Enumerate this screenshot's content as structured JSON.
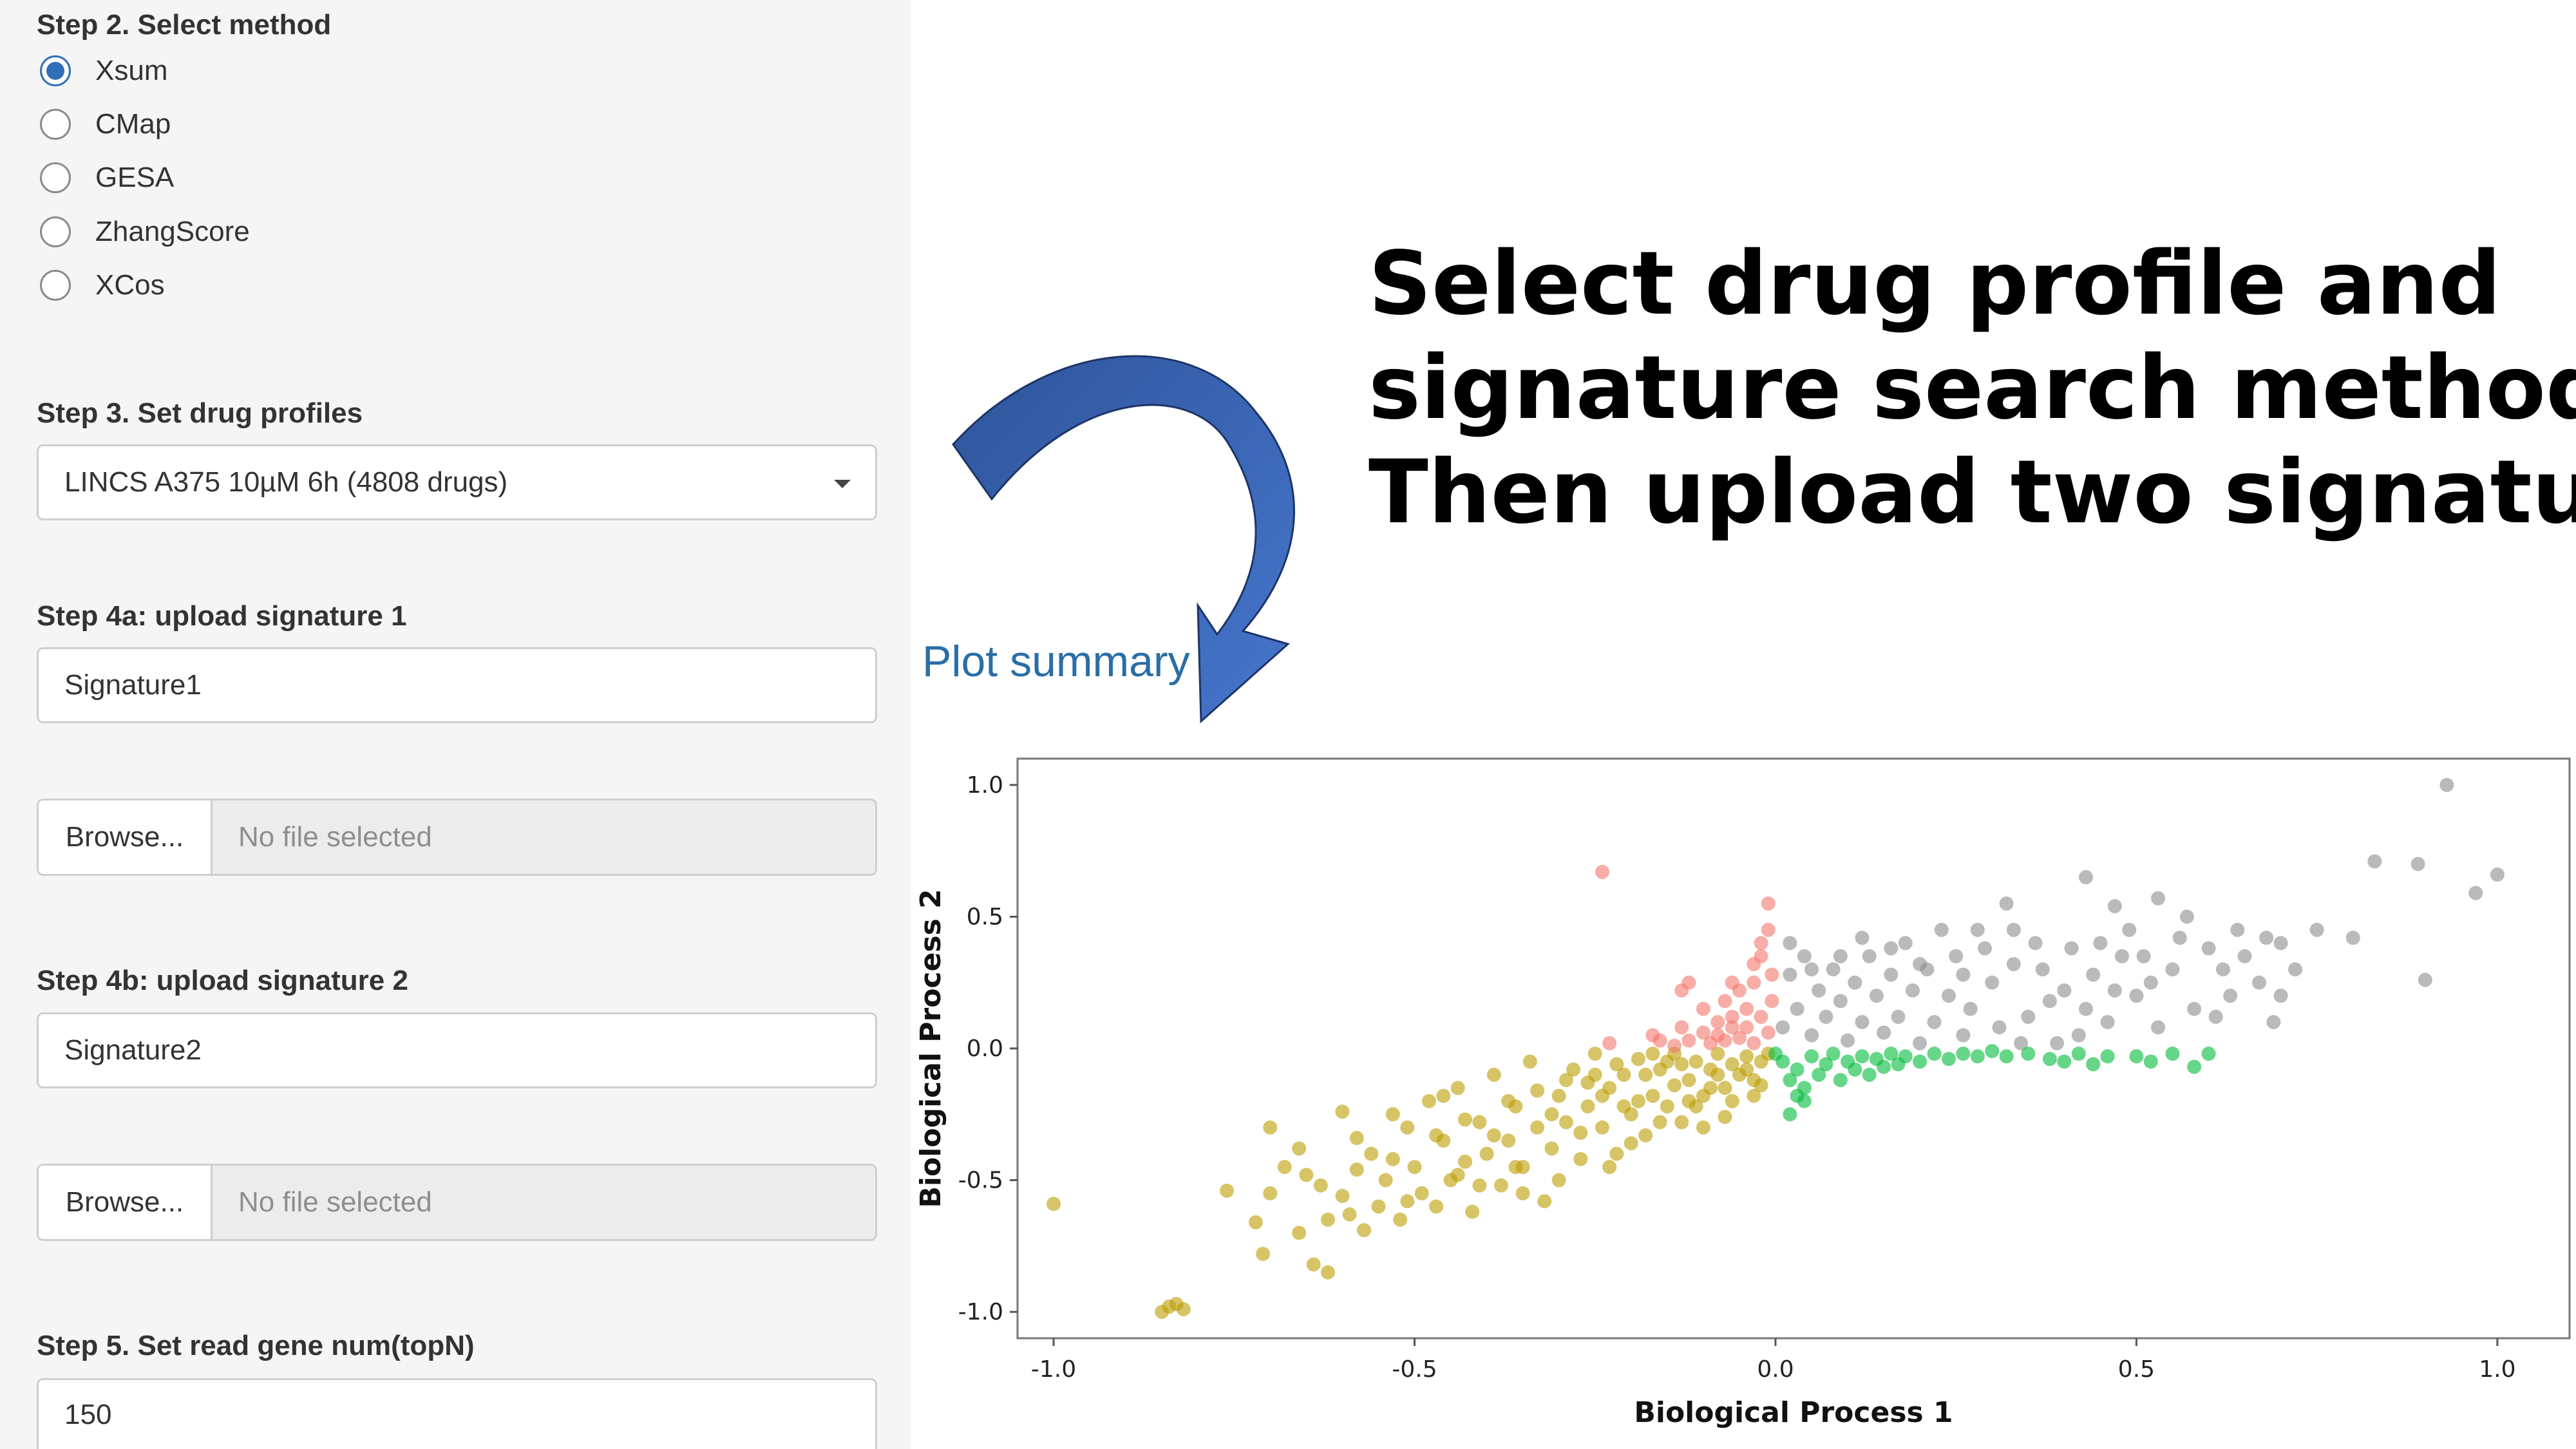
{
  "sidebar": {
    "step2": {
      "label": "Step 2. Select method",
      "options": [
        "Xsum",
        "CMap",
        "GESA",
        "ZhangScore",
        "XCos"
      ],
      "selected": "Xsum"
    },
    "step3": {
      "label": "Step 3. Set drug profiles",
      "selected": "LINCS A375 10µM 6h (4808 drugs)"
    },
    "step4a": {
      "label": "Step 4a: upload signature 1",
      "name_value": "Signature1",
      "browse_label": "Browse...",
      "file_status": "No file selected"
    },
    "step4b": {
      "label": "Step 4b: upload signature 2",
      "name_value": "Signature2",
      "browse_label": "Browse...",
      "file_status": "No file selected"
    },
    "step5": {
      "label": "Step 5. Set read gene num(topN)",
      "value": "150"
    }
  },
  "headline": {
    "line1": "Select drug profile and",
    "line2": "signature search method",
    "line3": "Then upload two signature"
  },
  "arrow": {
    "icon": "curved-arrow-icon",
    "color": "#4472c4"
  },
  "plot_title": "Plot summary",
  "chart_data": {
    "type": "scatter",
    "xlabel": "Biological Process 1",
    "ylabel": "Biological Process 2",
    "xlim": [
      -1.05,
      1.1
    ],
    "ylim": [
      -1.1,
      1.1
    ],
    "xticks": [
      "-1.0",
      "-0.5",
      "0.0",
      "0.5",
      "1.0"
    ],
    "yticks": [
      "-1.0",
      "-0.5",
      "0.0",
      "0.5",
      "1.0"
    ],
    "grid": false,
    "legend": "none",
    "series": [
      {
        "color": "#bd9c00",
        "points": [
          [
            -1.0,
            -0.59
          ],
          [
            -0.85,
            -1.0
          ],
          [
            -0.83,
            -0.97
          ],
          [
            -0.82,
            -0.99
          ],
          [
            -0.84,
            -0.98
          ],
          [
            -0.76,
            -0.54
          ],
          [
            -0.72,
            -0.66
          ],
          [
            -0.71,
            -0.78
          ],
          [
            -0.7,
            -0.55
          ],
          [
            -0.7,
            -0.3
          ],
          [
            -0.68,
            -0.45
          ],
          [
            -0.66,
            -0.38
          ],
          [
            -0.66,
            -0.7
          ],
          [
            -0.64,
            -0.82
          ],
          [
            -0.63,
            -0.52
          ],
          [
            -0.62,
            -0.65
          ],
          [
            -0.62,
            -0.85
          ],
          [
            -0.6,
            -0.56
          ],
          [
            -0.6,
            -0.24
          ],
          [
            -0.59,
            -0.63
          ],
          [
            -0.58,
            -0.46
          ],
          [
            -0.57,
            -0.69
          ],
          [
            -0.56,
            -0.4
          ],
          [
            -0.55,
            -0.6
          ],
          [
            -0.54,
            -0.5
          ],
          [
            -0.53,
            -0.25
          ],
          [
            -0.52,
            -0.65
          ],
          [
            -0.51,
            -0.3
          ],
          [
            -0.5,
            -0.45
          ],
          [
            -0.49,
            -0.55
          ],
          [
            -0.48,
            -0.2
          ],
          [
            -0.47,
            -0.6
          ],
          [
            -0.46,
            -0.35
          ],
          [
            -0.45,
            -0.5
          ],
          [
            -0.44,
            -0.15
          ],
          [
            -0.43,
            -0.43
          ],
          [
            -0.42,
            -0.62
          ],
          [
            -0.41,
            -0.28
          ],
          [
            -0.4,
            -0.4
          ],
          [
            -0.39,
            -0.1
          ],
          [
            -0.38,
            -0.52
          ],
          [
            -0.37,
            -0.35
          ],
          [
            -0.36,
            -0.22
          ],
          [
            -0.35,
            -0.45
          ],
          [
            -0.34,
            -0.05
          ],
          [
            -0.33,
            -0.3
          ],
          [
            -0.32,
            -0.58
          ],
          [
            -0.31,
            -0.38
          ],
          [
            -0.3,
            -0.18
          ],
          [
            -0.29,
            -0.28
          ],
          [
            -0.28,
            -0.08
          ],
          [
            -0.27,
            -0.42
          ],
          [
            -0.26,
            -0.22
          ],
          [
            -0.25,
            -0.02
          ],
          [
            -0.24,
            -0.3
          ],
          [
            -0.23,
            -0.15
          ],
          [
            -0.22,
            -0.4
          ],
          [
            -0.21,
            -0.1
          ],
          [
            -0.2,
            -0.25
          ],
          [
            -0.19,
            -0.04
          ],
          [
            -0.18,
            -0.33
          ],
          [
            -0.17,
            -0.18
          ],
          [
            -0.16,
            -0.08
          ],
          [
            -0.15,
            -0.22
          ],
          [
            -0.14,
            -0.02
          ],
          [
            -0.13,
            -0.28
          ],
          [
            -0.12,
            -0.12
          ],
          [
            -0.11,
            -0.05
          ],
          [
            -0.1,
            -0.18
          ],
          [
            -0.09,
            -0.08
          ],
          [
            -0.08,
            -0.02
          ],
          [
            -0.07,
            -0.15
          ],
          [
            -0.06,
            -0.06
          ],
          [
            -0.05,
            -0.1
          ],
          [
            -0.04,
            -0.03
          ],
          [
            -0.03,
            -0.12
          ],
          [
            -0.02,
            -0.05
          ],
          [
            -0.01,
            -0.02
          ],
          [
            -0.65,
            -0.48
          ],
          [
            -0.53,
            -0.42
          ],
          [
            -0.47,
            -0.33
          ],
          [
            -0.43,
            -0.27
          ],
          [
            -0.37,
            -0.2
          ],
          [
            -0.33,
            -0.16
          ],
          [
            -0.29,
            -0.12
          ],
          [
            -0.26,
            -0.13
          ],
          [
            -0.22,
            -0.06
          ],
          [
            -0.18,
            -0.1
          ],
          [
            -0.15,
            -0.05
          ],
          [
            -0.12,
            -0.2
          ],
          [
            -0.09,
            -0.15
          ],
          [
            -0.06,
            -0.2
          ],
          [
            -0.44,
            -0.48
          ],
          [
            -0.39,
            -0.33
          ],
          [
            -0.35,
            -0.55
          ],
          [
            -0.31,
            -0.25
          ],
          [
            -0.27,
            -0.32
          ],
          [
            -0.23,
            -0.45
          ],
          [
            -0.19,
            -0.2
          ],
          [
            -0.14,
            -0.14
          ],
          [
            -0.1,
            -0.3
          ],
          [
            -0.04,
            -0.08
          ],
          [
            -0.58,
            -0.34
          ],
          [
            -0.51,
            -0.58
          ],
          [
            -0.46,
            -0.18
          ],
          [
            -0.41,
            -0.52
          ],
          [
            -0.36,
            -0.45
          ],
          [
            -0.3,
            -0.5
          ],
          [
            -0.24,
            -0.18
          ],
          [
            -0.2,
            -0.36
          ],
          [
            -0.16,
            -0.28
          ],
          [
            -0.11,
            -0.22
          ],
          [
            -0.07,
            -0.26
          ],
          [
            -0.03,
            -0.18
          ],
          [
            -0.25,
            -0.1
          ],
          [
            -0.21,
            -0.22
          ],
          [
            -0.17,
            -0.02
          ],
          [
            -0.13,
            -0.06
          ],
          [
            -0.08,
            -0.1
          ],
          [
            -0.02,
            -0.14
          ]
        ]
      },
      {
        "color": "#f4766d",
        "points": [
          [
            -0.24,
            0.67
          ],
          [
            -0.23,
            0.02
          ],
          [
            -0.17,
            0.05
          ],
          [
            -0.16,
            0.03
          ],
          [
            -0.14,
            0.01
          ],
          [
            -0.13,
            0.08
          ],
          [
            -0.12,
            0.03
          ],
          [
            -0.1,
            0.15
          ],
          [
            -0.1,
            0.06
          ],
          [
            -0.09,
            0.02
          ],
          [
            -0.08,
            0.1
          ],
          [
            -0.08,
            0.05
          ],
          [
            -0.07,
            0.18
          ],
          [
            -0.07,
            0.03
          ],
          [
            -0.06,
            0.12
          ],
          [
            -0.06,
            0.08
          ],
          [
            -0.05,
            0.22
          ],
          [
            -0.05,
            0.04
          ],
          [
            -0.04,
            0.15
          ],
          [
            -0.04,
            0.08
          ],
          [
            -0.03,
            0.25
          ],
          [
            -0.03,
            0.02
          ],
          [
            -0.02,
            0.35
          ],
          [
            -0.02,
            0.12
          ],
          [
            -0.01,
            0.45
          ],
          [
            -0.01,
            0.55
          ],
          [
            -0.01,
            0.06
          ],
          [
            -0.005,
            0.28
          ],
          [
            -0.005,
            0.18
          ],
          [
            -0.02,
            0.4
          ],
          [
            -0.03,
            0.32
          ],
          [
            -0.06,
            0.25
          ],
          [
            -0.13,
            0.22
          ],
          [
            -0.12,
            0.25
          ]
        ]
      },
      {
        "color": "#8c8c8c",
        "points": [
          [
            0.93,
            1.0
          ],
          [
            0.83,
            0.71
          ],
          [
            0.89,
            0.7
          ],
          [
            0.97,
            0.59
          ],
          [
            1.0,
            0.66
          ],
          [
            0.9,
            0.26
          ],
          [
            0.53,
            0.57
          ],
          [
            0.47,
            0.54
          ],
          [
            0.43,
            0.65
          ],
          [
            0.32,
            0.55
          ],
          [
            0.68,
            0.42
          ],
          [
            0.7,
            0.4
          ],
          [
            0.75,
            0.45
          ],
          [
            0.8,
            0.42
          ],
          [
            0.65,
            0.35
          ],
          [
            0.62,
            0.3
          ],
          [
            0.69,
            0.1
          ],
          [
            0.67,
            0.25
          ],
          [
            0.6,
            0.38
          ],
          [
            0.55,
            0.3
          ],
          [
            0.52,
            0.25
          ],
          [
            0.5,
            0.2
          ],
          [
            0.48,
            0.35
          ],
          [
            0.46,
            0.1
          ],
          [
            0.44,
            0.28
          ],
          [
            0.42,
            0.05
          ],
          [
            0.4,
            0.22
          ],
          [
            0.38,
            0.18
          ],
          [
            0.36,
            0.4
          ],
          [
            0.35,
            0.12
          ],
          [
            0.33,
            0.32
          ],
          [
            0.31,
            0.08
          ],
          [
            0.3,
            0.25
          ],
          [
            0.28,
            0.45
          ],
          [
            0.27,
            0.15
          ],
          [
            0.26,
            0.05
          ],
          [
            0.25,
            0.35
          ],
          [
            0.24,
            0.2
          ],
          [
            0.22,
            0.1
          ],
          [
            0.21,
            0.3
          ],
          [
            0.2,
            0.02
          ],
          [
            0.19,
            0.22
          ],
          [
            0.18,
            0.4
          ],
          [
            0.17,
            0.12
          ],
          [
            0.16,
            0.28
          ],
          [
            0.15,
            0.06
          ],
          [
            0.14,
            0.2
          ],
          [
            0.13,
            0.35
          ],
          [
            0.12,
            0.1
          ],
          [
            0.11,
            0.25
          ],
          [
            0.1,
            0.03
          ],
          [
            0.09,
            0.18
          ],
          [
            0.08,
            0.3
          ],
          [
            0.07,
            0.12
          ],
          [
            0.06,
            0.22
          ],
          [
            0.05,
            0.05
          ],
          [
            0.04,
            0.35
          ],
          [
            0.03,
            0.15
          ],
          [
            0.02,
            0.28
          ],
          [
            0.01,
            0.08
          ],
          [
            0.02,
            0.4
          ],
          [
            0.05,
            0.3
          ],
          [
            0.09,
            0.35
          ],
          [
            0.12,
            0.42
          ],
          [
            0.16,
            0.38
          ],
          [
            0.2,
            0.32
          ],
          [
            0.23,
            0.45
          ],
          [
            0.26,
            0.28
          ],
          [
            0.29,
            0.38
          ],
          [
            0.33,
            0.45
          ],
          [
            0.37,
            0.3
          ],
          [
            0.41,
            0.38
          ],
          [
            0.45,
            0.4
          ],
          [
            0.49,
            0.45
          ],
          [
            0.57,
            0.5
          ],
          [
            0.63,
            0.2
          ],
          [
            0.58,
            0.15
          ],
          [
            0.53,
            0.08
          ],
          [
            0.39,
            0.02
          ],
          [
            0.34,
            0.02
          ],
          [
            0.43,
            0.15
          ],
          [
            0.47,
            0.22
          ],
          [
            0.51,
            0.35
          ],
          [
            0.56,
            0.42
          ],
          [
            0.61,
            0.12
          ],
          [
            0.64,
            0.45
          ],
          [
            0.72,
            0.3
          ],
          [
            0.7,
            0.2
          ]
        ]
      },
      {
        "color": "#00ba38",
        "points": [
          [
            0.0,
            -0.02
          ],
          [
            0.01,
            -0.05
          ],
          [
            0.02,
            -0.12
          ],
          [
            0.03,
            -0.08
          ],
          [
            0.04,
            -0.15
          ],
          [
            0.05,
            -0.03
          ],
          [
            0.06,
            -0.1
          ],
          [
            0.07,
            -0.06
          ],
          [
            0.08,
            -0.02
          ],
          [
            0.09,
            -0.12
          ],
          [
            0.1,
            -0.05
          ],
          [
            0.11,
            -0.08
          ],
          [
            0.12,
            -0.03
          ],
          [
            0.13,
            -0.1
          ],
          [
            0.14,
            -0.04
          ],
          [
            0.15,
            -0.07
          ],
          [
            0.16,
            -0.02
          ],
          [
            0.17,
            -0.06
          ],
          [
            0.18,
            -0.03
          ],
          [
            0.2,
            -0.05
          ],
          [
            0.22,
            -0.02
          ],
          [
            0.24,
            -0.04
          ],
          [
            0.26,
            -0.02
          ],
          [
            0.28,
            -0.03
          ],
          [
            0.3,
            -0.01
          ],
          [
            0.32,
            -0.03
          ],
          [
            0.35,
            -0.02
          ],
          [
            0.38,
            -0.04
          ],
          [
            0.4,
            -0.05
          ],
          [
            0.42,
            -0.02
          ],
          [
            0.44,
            -0.06
          ],
          [
            0.46,
            -0.03
          ],
          [
            0.5,
            -0.03
          ],
          [
            0.52,
            -0.05
          ],
          [
            0.55,
            -0.02
          ],
          [
            0.58,
            -0.07
          ],
          [
            0.6,
            -0.02
          ],
          [
            0.02,
            -0.25
          ],
          [
            0.04,
            -0.2
          ],
          [
            0.03,
            -0.18
          ]
        ]
      }
    ]
  }
}
